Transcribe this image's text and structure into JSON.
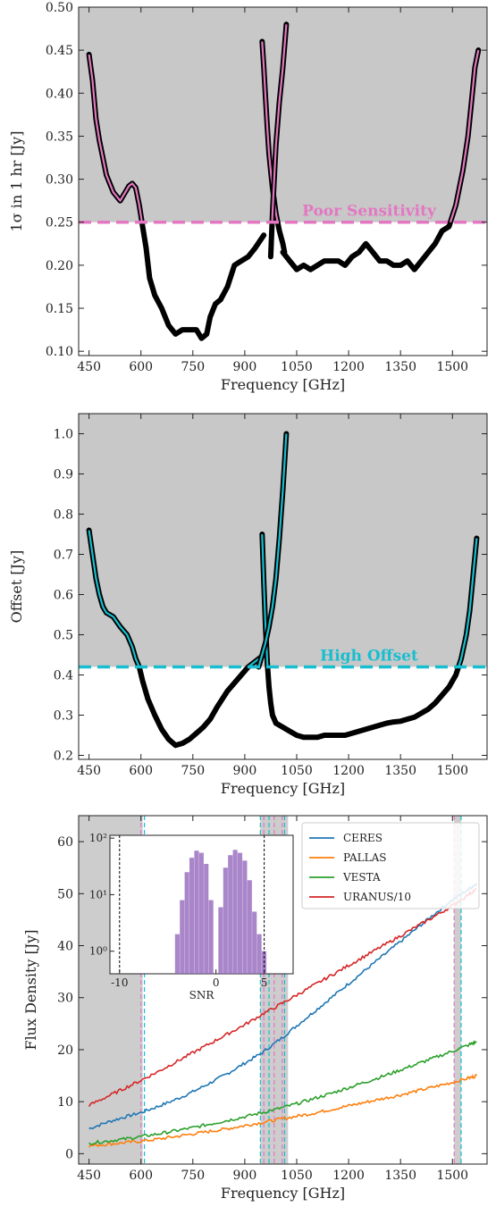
{
  "chart_data": [
    {
      "type": "line",
      "xlabel": "Frequency [GHz]",
      "ylabel": "1σ in 1 hr [Jy]",
      "xlim": [
        420,
        1600
      ],
      "ylim": [
        0.095,
        0.5
      ],
      "xticks": [
        450,
        600,
        750,
        900,
        1050,
        1200,
        1350,
        1500
      ],
      "yticks": [
        0.1,
        0.15,
        0.2,
        0.25,
        0.3,
        0.35,
        0.4,
        0.45,
        0.5
      ],
      "shaded_region": "above threshold (gray)",
      "threshold": {
        "value": 0.25,
        "label": "Poor Sensitivity",
        "color": "#e377c2"
      },
      "segments": [
        {
          "name": "band-1",
          "x": [
            450,
            460,
            470,
            480,
            490,
            500,
            520,
            540,
            555,
            565,
            575,
            585,
            595,
            605,
            615,
            625,
            640,
            660,
            680,
            700,
            720,
            740,
            760,
            775,
            790,
            800,
            815,
            830,
            850,
            870,
            890,
            910,
            930,
            955
          ],
          "y": [
            0.445,
            0.415,
            0.37,
            0.345,
            0.325,
            0.305,
            0.285,
            0.275,
            0.285,
            0.292,
            0.295,
            0.29,
            0.27,
            0.245,
            0.22,
            0.185,
            0.165,
            0.15,
            0.13,
            0.12,
            0.125,
            0.125,
            0.125,
            0.115,
            0.12,
            0.14,
            0.155,
            0.16,
            0.175,
            0.2,
            0.205,
            0.21,
            0.22,
            0.235
          ]
        },
        {
          "name": "band-2",
          "x": [
            950,
            955,
            960,
            965,
            970,
            975,
            980,
            990,
            1000,
            1010,
            1015
          ],
          "y": [
            0.46,
            0.43,
            0.395,
            0.36,
            0.33,
            0.31,
            0.29,
            0.26,
            0.24,
            0.225,
            0.215
          ]
        },
        {
          "name": "band-3",
          "x": [
            975,
            980,
            985,
            990,
            1000,
            1010,
            1020
          ],
          "y": [
            0.21,
            0.26,
            0.3,
            0.34,
            0.39,
            0.43,
            0.48
          ]
        },
        {
          "name": "band-4",
          "x": [
            1010,
            1030,
            1050,
            1070,
            1090,
            1110,
            1130,
            1150,
            1170,
            1190,
            1210,
            1230,
            1250,
            1270,
            1290,
            1310,
            1330,
            1350,
            1370,
            1390,
            1410,
            1430,
            1450,
            1470,
            1490,
            1510,
            1530,
            1545,
            1555,
            1565,
            1575
          ],
          "y": [
            0.215,
            0.205,
            0.195,
            0.2,
            0.195,
            0.2,
            0.205,
            0.205,
            0.205,
            0.2,
            0.21,
            0.215,
            0.225,
            0.215,
            0.205,
            0.205,
            0.2,
            0.2,
            0.205,
            0.195,
            0.205,
            0.215,
            0.225,
            0.24,
            0.245,
            0.27,
            0.31,
            0.35,
            0.39,
            0.43,
            0.45
          ]
        }
      ]
    },
    {
      "type": "line",
      "xlabel": "Frequency [GHz]",
      "ylabel": "Offset [Jy]",
      "xlim": [
        420,
        1600
      ],
      "ylim": [
        0.19,
        1.05
      ],
      "xticks": [
        450,
        600,
        750,
        900,
        1050,
        1200,
        1350,
        1500
      ],
      "yticks": [
        0.2,
        0.3,
        0.4,
        0.5,
        0.6,
        0.7,
        0.8,
        0.9,
        1.0
      ],
      "shaded_region": "above threshold (gray)",
      "threshold": {
        "value": 0.42,
        "label": "High Offset",
        "color": "#17becf"
      },
      "segments": [
        {
          "name": "band-1",
          "x": [
            450,
            460,
            470,
            480,
            490,
            500,
            520,
            540,
            560,
            575,
            585,
            595,
            605,
            620,
            640,
            660,
            680,
            700,
            720,
            740,
            760,
            780,
            800,
            820,
            850,
            880,
            910,
            940,
            955
          ],
          "y": [
            0.76,
            0.7,
            0.64,
            0.6,
            0.57,
            0.555,
            0.545,
            0.52,
            0.5,
            0.47,
            0.44,
            0.42,
            0.385,
            0.34,
            0.3,
            0.265,
            0.24,
            0.225,
            0.23,
            0.24,
            0.255,
            0.27,
            0.29,
            0.32,
            0.36,
            0.39,
            0.42,
            0.44,
            0.45
          ]
        },
        {
          "name": "band-2",
          "x": [
            950,
            955,
            960,
            965,
            970,
            975,
            980,
            990
          ],
          "y": [
            0.75,
            0.63,
            0.52,
            0.43,
            0.37,
            0.33,
            0.3,
            0.28
          ]
        },
        {
          "name": "band-3",
          "x": [
            940,
            950,
            960,
            970,
            980,
            990,
            1000,
            1010,
            1020
          ],
          "y": [
            0.42,
            0.45,
            0.48,
            0.52,
            0.57,
            0.64,
            0.74,
            0.86,
            1.0
          ]
        },
        {
          "name": "band-4",
          "x": [
            990,
            1010,
            1030,
            1050,
            1070,
            1090,
            1110,
            1130,
            1150,
            1170,
            1190,
            1210,
            1230,
            1250,
            1270,
            1290,
            1310,
            1330,
            1350,
            1370,
            1390,
            1410,
            1430,
            1450,
            1470,
            1490,
            1510,
            1525,
            1540,
            1550,
            1560,
            1570
          ],
          "y": [
            0.28,
            0.27,
            0.26,
            0.25,
            0.245,
            0.245,
            0.245,
            0.25,
            0.25,
            0.25,
            0.25,
            0.255,
            0.26,
            0.265,
            0.27,
            0.275,
            0.28,
            0.283,
            0.285,
            0.29,
            0.295,
            0.305,
            0.315,
            0.33,
            0.35,
            0.37,
            0.4,
            0.44,
            0.5,
            0.56,
            0.65,
            0.74
          ]
        }
      ]
    },
    {
      "type": "line",
      "xlabel": "Frequency [GHz]",
      "ylabel": "Flux Density [Jy]",
      "xlim": [
        420,
        1600
      ],
      "ylim": [
        -2,
        65
      ],
      "xticks": [
        450,
        600,
        750,
        900,
        1050,
        1200,
        1350,
        1500
      ],
      "yticks": [
        0,
        10,
        20,
        30,
        40,
        50,
        60
      ],
      "legend": "top-right",
      "series": [
        {
          "name": "CERES",
          "color": "#1f77b4",
          "x": [
            450,
            500,
            550,
            600,
            650,
            700,
            750,
            800,
            850,
            900,
            950,
            1000,
            1050,
            1100,
            1150,
            1200,
            1250,
            1300,
            1350,
            1400,
            1450,
            1500,
            1550,
            1570
          ],
          "y": [
            4.8,
            6.0,
            7.0,
            7.9,
            9.1,
            10.4,
            11.9,
            13.6,
            15.4,
            17.4,
            19.4,
            21.9,
            24.6,
            27.3,
            30.0,
            32.7,
            35.4,
            38.1,
            40.8,
            43.5,
            46.2,
            48.8,
            51.0,
            52.0
          ]
        },
        {
          "name": "PALLAS",
          "color": "#ff7f0e",
          "x": [
            450,
            500,
            550,
            600,
            650,
            700,
            750,
            800,
            850,
            900,
            950,
            1000,
            1050,
            1100,
            1150,
            1200,
            1250,
            1300,
            1350,
            1400,
            1450,
            1500,
            1550,
            1570
          ],
          "y": [
            1.5,
            1.8,
            2.1,
            2.4,
            2.8,
            3.3,
            3.8,
            4.3,
            4.8,
            5.4,
            6.0,
            6.6,
            7.2,
            7.8,
            8.5,
            9.2,
            9.9,
            10.6,
            11.3,
            12.1,
            12.9,
            13.7,
            14.6,
            15.0
          ]
        },
        {
          "name": "VESTA",
          "color": "#2ca02c",
          "x": [
            450,
            500,
            550,
            600,
            650,
            700,
            750,
            800,
            850,
            900,
            950,
            1000,
            1050,
            1100,
            1150,
            1200,
            1250,
            1300,
            1350,
            1400,
            1450,
            1500,
            1550,
            1570
          ],
          "y": [
            2.0,
            2.4,
            2.8,
            3.3,
            3.8,
            4.4,
            5.0,
            5.7,
            6.4,
            7.1,
            7.9,
            8.7,
            9.6,
            10.6,
            11.6,
            12.7,
            13.8,
            14.9,
            16.1,
            17.3,
            18.5,
            19.7,
            21.0,
            21.5
          ]
        },
        {
          "name": "URANUS/10",
          "color": "#d62728",
          "x": [
            450,
            500,
            550,
            600,
            650,
            700,
            750,
            800,
            850,
            900,
            950,
            1000,
            1050,
            1100,
            1150,
            1200,
            1250,
            1300,
            1350,
            1400,
            1450,
            1500,
            1550,
            1570
          ],
          "y": [
            9.3,
            10.9,
            12.5,
            14.1,
            15.8,
            17.6,
            19.4,
            21.2,
            23.0,
            24.8,
            26.8,
            28.6,
            30.5,
            32.4,
            34.3,
            36.2,
            38.1,
            40.0,
            41.9,
            43.8,
            45.7,
            47.7,
            50.0,
            50.9
          ]
        }
      ],
      "vlines": [
        {
          "x": 600,
          "color": "#e377c2"
        },
        {
          "x": 610,
          "color": "#17becf"
        },
        {
          "x": 945,
          "color": "#17becf"
        },
        {
          "x": 955,
          "color": "#e377c2"
        },
        {
          "x": 970,
          "color": "#17becf"
        },
        {
          "x": 985,
          "color": "#e377c2"
        },
        {
          "x": 1008,
          "color": "#e377c2"
        },
        {
          "x": 1015,
          "color": "#17becf"
        },
        {
          "x": 1505,
          "color": "#e377c2"
        },
        {
          "x": 1525,
          "color": "#17becf"
        }
      ],
      "shaded_bands": [
        [
          420,
          605
        ],
        [
          945,
          1025
        ],
        [
          1505,
          1525
        ]
      ],
      "inset": {
        "type": "histogram",
        "xlabel": "SNR",
        "xlim": [
          -11,
          8
        ],
        "ylog": true,
        "yticks": [
          "10⁰",
          "10¹",
          "10²"
        ],
        "xticks": [
          "-10",
          "0",
          "5"
        ],
        "vlines": [
          -10,
          5
        ],
        "color": "#9467bd",
        "bins": [
          -4,
          -3.5,
          -3,
          -2.5,
          -2,
          -1.5,
          -1,
          -0.5,
          0.5,
          1,
          1.5,
          2,
          2.5,
          3,
          3.5,
          4,
          4.5,
          5
        ],
        "counts": [
          2,
          8,
          25,
          45,
          60,
          55,
          35,
          8,
          6,
          30,
          50,
          62,
          55,
          40,
          18,
          5,
          2,
          1
        ]
      }
    }
  ]
}
